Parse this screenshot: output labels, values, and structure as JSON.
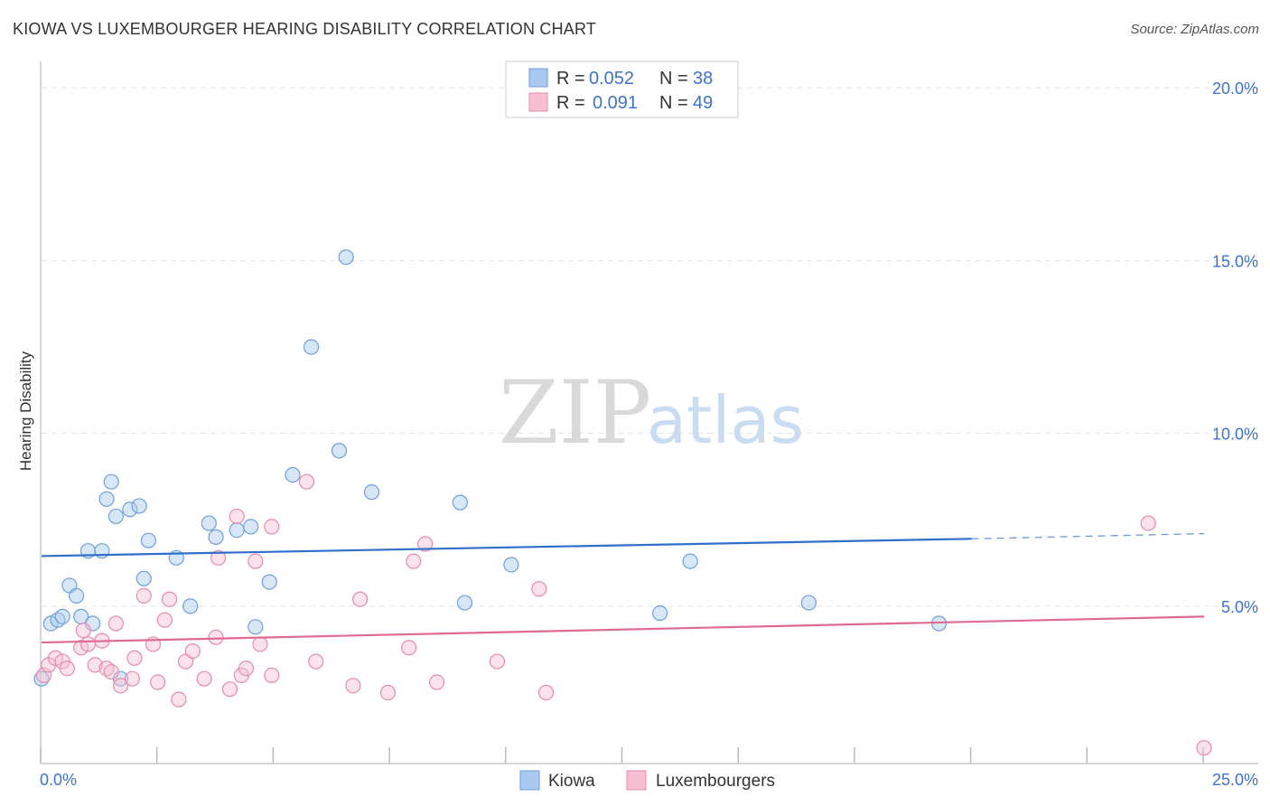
{
  "header": {
    "title": "KIOWA VS LUXEMBOURGER HEARING DISABILITY CORRELATION CHART",
    "source": "Source: ZipAtlas.com"
  },
  "watermark": {
    "zip": "ZIP",
    "atlas": "atlas"
  },
  "legend": {
    "r_label": "R =",
    "n_label": "N =",
    "items": [
      {
        "r": "0.052",
        "n": "38",
        "color": "#a9c9f0",
        "stroke": "#6f9fdc"
      },
      {
        "r": "0.091",
        "n": "49",
        "color": "#f7bfd2",
        "stroke": "#e58cab"
      }
    ]
  },
  "chart_data": {
    "type": "scatter",
    "title": "KIOWA VS LUXEMBOURGER HEARING DISABILITY CORRELATION CHART",
    "xlabel": "",
    "ylabel": "Hearing Disability",
    "xlim": [
      0,
      25
    ],
    "ylim": [
      0.5,
      20.5
    ],
    "x_tick_labels": [
      "0.0%",
      "25.0%"
    ],
    "y_ticks": [
      5,
      10,
      15,
      20
    ],
    "y_tick_labels": [
      "5.0%",
      "10.0%",
      "15.0%",
      "20.0%"
    ],
    "grid": true,
    "legend_position": "top-center",
    "series": [
      {
        "name": "Kiowa",
        "color": "#a9c9f0",
        "edge": "#6f9fdc",
        "line_color": "#2f6fcc",
        "trend": {
          "x": [
            0,
            20
          ],
          "y": [
            6.45,
            6.95
          ],
          "dashed_extension": {
            "x": [
              20,
              25
            ],
            "y": [
              6.95,
              7.1
            ]
          }
        },
        "points": [
          [
            0.0,
            2.9
          ],
          [
            0.2,
            4.5
          ],
          [
            0.35,
            4.6
          ],
          [
            0.45,
            4.7
          ],
          [
            0.6,
            5.6
          ],
          [
            0.75,
            5.3
          ],
          [
            0.85,
            4.7
          ],
          [
            1.0,
            6.6
          ],
          [
            1.1,
            4.5
          ],
          [
            1.3,
            6.6
          ],
          [
            1.4,
            8.1
          ],
          [
            1.5,
            8.6
          ],
          [
            1.6,
            7.6
          ],
          [
            1.7,
            2.9
          ],
          [
            1.9,
            7.8
          ],
          [
            2.1,
            7.9
          ],
          [
            2.2,
            5.8
          ],
          [
            2.3,
            6.9
          ],
          [
            2.9,
            6.4
          ],
          [
            3.2,
            5.0
          ],
          [
            3.6,
            7.4
          ],
          [
            3.75,
            7.0
          ],
          [
            4.2,
            7.2
          ],
          [
            4.5,
            7.3
          ],
          [
            4.6,
            4.4
          ],
          [
            4.9,
            5.7
          ],
          [
            5.4,
            8.8
          ],
          [
            5.8,
            12.5
          ],
          [
            6.4,
            9.5
          ],
          [
            6.55,
            15.1
          ],
          [
            7.1,
            8.3
          ],
          [
            9.0,
            8.0
          ],
          [
            9.1,
            5.1
          ],
          [
            10.1,
            6.2
          ],
          [
            13.3,
            4.8
          ],
          [
            13.95,
            6.3
          ],
          [
            16.5,
            5.1
          ],
          [
            19.3,
            4.5
          ]
        ]
      },
      {
        "name": "Luxembourgers",
        "color": "#f7bfd2",
        "edge": "#e58cab",
        "line_color": "#e06a96",
        "trend": {
          "x": [
            0,
            25
          ],
          "y": [
            3.95,
            4.7
          ]
        },
        "points": [
          [
            0.05,
            3.0
          ],
          [
            0.15,
            3.3
          ],
          [
            0.3,
            3.5
          ],
          [
            0.45,
            3.4
          ],
          [
            0.55,
            3.2
          ],
          [
            0.85,
            3.8
          ],
          [
            0.9,
            4.3
          ],
          [
            1.0,
            3.9
          ],
          [
            1.15,
            3.3
          ],
          [
            1.3,
            4.0
          ],
          [
            1.4,
            3.2
          ],
          [
            1.5,
            3.1
          ],
          [
            1.6,
            4.5
          ],
          [
            1.7,
            2.7
          ],
          [
            1.95,
            2.9
          ],
          [
            2.0,
            3.5
          ],
          [
            2.2,
            5.3
          ],
          [
            2.4,
            3.9
          ],
          [
            2.5,
            2.8
          ],
          [
            2.65,
            4.6
          ],
          [
            2.75,
            5.2
          ],
          [
            2.95,
            2.3
          ],
          [
            3.1,
            3.4
          ],
          [
            3.25,
            3.7
          ],
          [
            3.5,
            2.9
          ],
          [
            3.75,
            4.1
          ],
          [
            3.8,
            6.4
          ],
          [
            4.05,
            2.6
          ],
          [
            4.2,
            7.6
          ],
          [
            4.3,
            3.0
          ],
          [
            4.4,
            3.2
          ],
          [
            4.6,
            6.3
          ],
          [
            4.7,
            3.9
          ],
          [
            4.95,
            3.0
          ],
          [
            4.95,
            7.3
          ],
          [
            5.7,
            8.6
          ],
          [
            5.9,
            3.4
          ],
          [
            6.7,
            2.7
          ],
          [
            6.85,
            5.2
          ],
          [
            7.45,
            2.5
          ],
          [
            7.9,
            3.8
          ],
          [
            8.0,
            6.3
          ],
          [
            8.25,
            6.8
          ],
          [
            8.5,
            2.8
          ],
          [
            9.8,
            3.4
          ],
          [
            10.7,
            5.5
          ],
          [
            10.85,
            2.5
          ],
          [
            23.8,
            7.4
          ],
          [
            25.0,
            0.9
          ]
        ]
      }
    ]
  }
}
